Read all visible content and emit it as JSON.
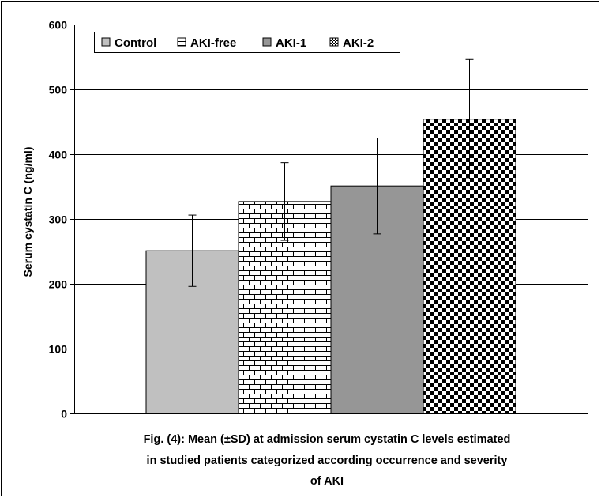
{
  "chart_data": {
    "type": "bar",
    "title": "",
    "ylabel": "Serum cystatin C (ng/ml)",
    "xlabel": "",
    "ylim": [
      0,
      600
    ],
    "yticks": [
      0,
      100,
      200,
      300,
      400,
      500,
      600
    ],
    "grid": true,
    "legend_position": "top-left",
    "categories": [
      "Control",
      "AKI-free",
      "AKI-1",
      "AKI-2"
    ],
    "series": [
      {
        "name": "Control",
        "value": 251,
        "sd": 55,
        "pattern": "solid",
        "color": "#c0c0c0"
      },
      {
        "name": "AKI-free",
        "value": 327,
        "sd": 60,
        "pattern": "brick",
        "color": "#ffffff"
      },
      {
        "name": "AKI-1",
        "value": 351,
        "sd": 74,
        "pattern": "solid",
        "color": "#969696"
      },
      {
        "name": "AKI-2",
        "value": 454,
        "sd": 92,
        "pattern": "checker",
        "color": "#000000"
      }
    ],
    "caption_lines": [
      "Fig. (4): Mean (±SD) at admission serum cystatin C levels estimated",
      "in studied patients categorized according occurrence and severity",
      "of AKI"
    ]
  }
}
